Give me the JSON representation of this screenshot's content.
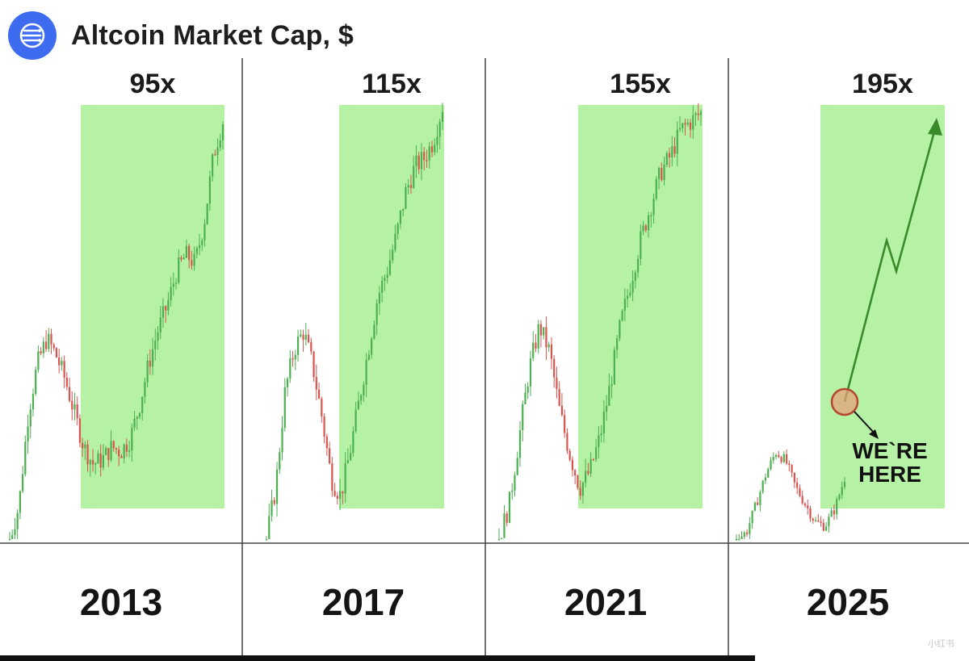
{
  "header": {
    "title": "Altcoin Market Cap, $",
    "icon": "data-streams-icon",
    "icon_color": "#3d6cf0"
  },
  "colors": {
    "highlight": "#b6f2a6",
    "up_candle": "#4caf50",
    "down_candle": "#d9534f",
    "divider": "#444444",
    "arrow": "#3a8a2a",
    "marker_fill": "#e6a07a",
    "marker_stroke": "#b5472e"
  },
  "chart_data": [
    {
      "type": "line",
      "year": "2013",
      "multiplier_label": "95x",
      "shape": [
        0.0,
        0.08,
        0.3,
        0.42,
        0.48,
        0.44,
        0.38,
        0.3,
        0.22,
        0.18,
        0.19,
        0.22,
        0.21,
        0.24,
        0.32,
        0.42,
        0.5,
        0.56,
        0.64,
        0.68,
        0.66,
        0.76,
        0.92,
        1.0
      ]
    },
    {
      "type": "line",
      "year": "2017",
      "multiplier_label": "115x",
      "shape": [
        0.0,
        0.12,
        0.34,
        0.44,
        0.48,
        0.4,
        0.28,
        0.14,
        0.1,
        0.2,
        0.32,
        0.44,
        0.56,
        0.62,
        0.7,
        0.8,
        0.86,
        0.88,
        0.92,
        1.0
      ]
    },
    {
      "type": "line",
      "year": "2021",
      "multiplier_label": "155x",
      "shape": [
        0.0,
        0.08,
        0.24,
        0.4,
        0.5,
        0.44,
        0.3,
        0.2,
        0.12,
        0.16,
        0.24,
        0.36,
        0.5,
        0.6,
        0.7,
        0.78,
        0.86,
        0.9,
        0.96,
        0.98,
        1.0
      ]
    },
    {
      "type": "line",
      "year": "2025",
      "multiplier_label": "195x",
      "shape": [
        0.0,
        0.03,
        0.16,
        0.3,
        0.4,
        0.36,
        0.24,
        0.16,
        0.08,
        0.06,
        0.14,
        0.28
      ],
      "annotation": "WE`RE HERE",
      "projection": "arrow"
    }
  ]
}
